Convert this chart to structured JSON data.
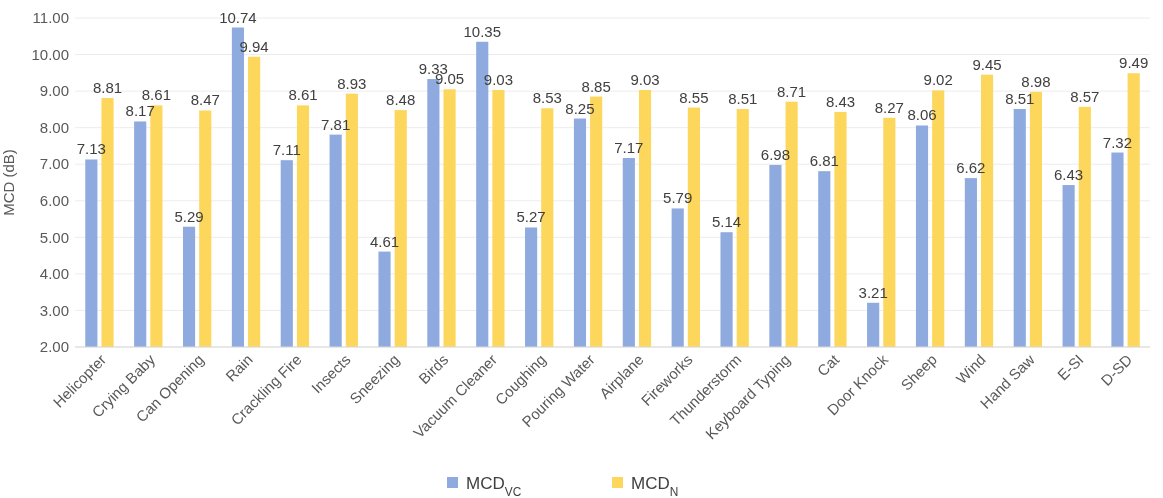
{
  "chart_data": {
    "type": "bar",
    "ylabel": "MCD (dB)",
    "categories": [
      "Helicopter",
      "Crying Baby",
      "Can Opening",
      "Rain",
      "Crackling Fire",
      "Insects",
      "Sneezing",
      "Birds",
      "Vacuum Cleaner",
      "Coughing",
      "Pouring Water",
      "Airplane",
      "Fireworks",
      "Thunderstorm",
      "Keyboard Typing",
      "Cat",
      "Door Knock",
      "Sheep",
      "Wind",
      "Hand Saw",
      "E-SI",
      "D-SD"
    ],
    "series": [
      {
        "name": "MCD$_{VC}$",
        "color": "#8eaade",
        "values": [
          7.13,
          8.17,
          5.29,
          10.74,
          7.11,
          7.81,
          4.61,
          9.33,
          10.35,
          5.27,
          8.25,
          7.17,
          5.79,
          5.14,
          6.98,
          6.81,
          3.21,
          8.06,
          6.62,
          8.51,
          6.43,
          7.32
        ]
      },
      {
        "name": "MCD$_{N}$",
        "color": "#fdd65c",
        "values": [
          8.81,
          8.61,
          8.47,
          9.94,
          8.61,
          8.93,
          8.48,
          9.05,
          9.03,
          8.53,
          8.85,
          9.03,
          8.55,
          8.51,
          8.71,
          8.43,
          8.27,
          9.02,
          9.45,
          8.98,
          8.57,
          9.49
        ]
      }
    ],
    "ylim": [
      2,
      11
    ],
    "yticks": [
      {
        "value": 2,
        "label": "2.00"
      },
      {
        "value": 3,
        "label": "3.00"
      },
      {
        "value": 4,
        "label": "4.00"
      },
      {
        "value": 5,
        "label": "5.00"
      },
      {
        "value": 6,
        "label": "6.00"
      },
      {
        "value": 7,
        "label": "7.00"
      },
      {
        "value": 8,
        "label": "8.00"
      },
      {
        "value": 9,
        "label": "9.00"
      },
      {
        "value": 10,
        "label": "10.00"
      },
      {
        "value": 11,
        "label": "11.00"
      }
    ],
    "grid": "y",
    "legend": "bottom",
    "data_labels": true
  }
}
